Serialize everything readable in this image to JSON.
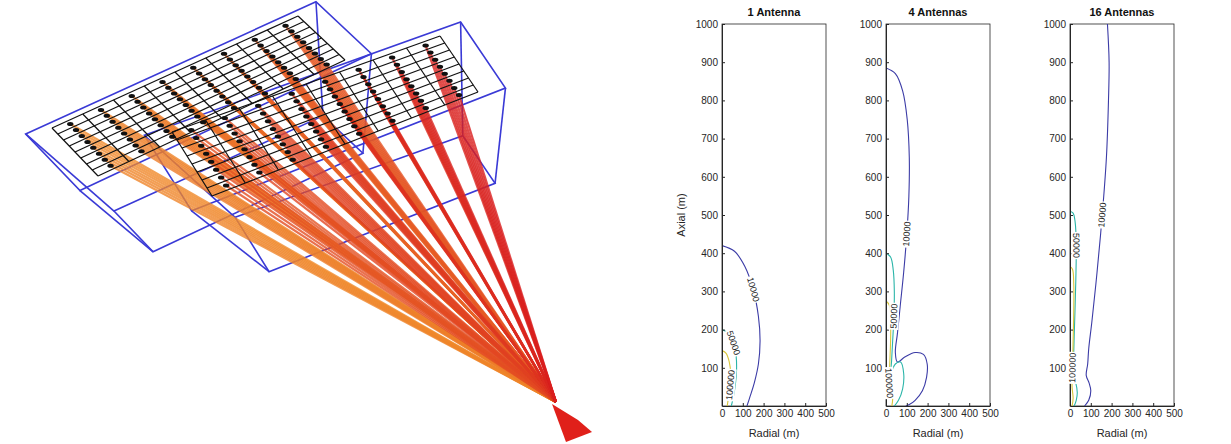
{
  "chart_data": [
    {
      "type": "contour",
      "title": "1 Antenna",
      "x_label": "Radial (m)",
      "y_label": "Axial (m)",
      "xlim": [
        0,
        500
      ],
      "ylim": [
        0,
        1000
      ],
      "xticks": [
        0,
        100,
        200,
        300,
        400,
        500
      ],
      "yticks": [
        100,
        200,
        300,
        400,
        500,
        600,
        700,
        800,
        900,
        1000
      ],
      "contours": [
        {
          "level": 10000,
          "color": "#3b3ba6",
          "x": [
            0,
            60,
            110,
            150,
            175,
            183,
            175,
            155,
            135,
            120
          ],
          "y": [
            420,
            405,
            365,
            305,
            235,
            170,
            110,
            60,
            25,
            0
          ]
        },
        {
          "level": 50000,
          "color": "#2bb5a9",
          "x": [
            0,
            30,
            55,
            68,
            70,
            65,
            55,
            45
          ],
          "y": [
            200,
            190,
            165,
            130,
            95,
            60,
            25,
            0
          ]
        },
        {
          "level": 100000,
          "color": "#d9c63a",
          "x": [
            0,
            20,
            35,
            42,
            40,
            32,
            25
          ],
          "y": [
            145,
            138,
            115,
            85,
            55,
            25,
            0
          ]
        }
      ]
    },
    {
      "type": "contour",
      "title": "4 Antennas",
      "x_label": "Radial (m)",
      "xlim": [
        0,
        500
      ],
      "ylim": [
        0,
        1000
      ],
      "xticks": [
        0,
        100,
        200,
        300,
        400,
        500
      ],
      "yticks": [
        100,
        200,
        300,
        400,
        500,
        600,
        700,
        800,
        900,
        1000
      ],
      "contours": [
        {
          "level": 10000,
          "color": "#3b3ba6",
          "x": [
            0,
            45,
            80,
            102,
            112,
            110,
            100,
            85,
            68,
            55,
            45,
            55,
            90,
            140,
            180,
            198,
            195,
            175,
            140,
            110,
            95
          ],
          "y": [
            885,
            870,
            825,
            750,
            650,
            550,
            450,
            350,
            260,
            190,
            140,
            115,
            128,
            140,
            135,
            110,
            75,
            40,
            15,
            3,
            0
          ]
        },
        {
          "level": 50000,
          "color": "#2bb5a9",
          "x": [
            0,
            22,
            35,
            40,
            38,
            32,
            27,
            25,
            45,
            70,
            85,
            80,
            60,
            40
          ],
          "y": [
            400,
            390,
            355,
            300,
            235,
            170,
            120,
            90,
            110,
            115,
            85,
            45,
            15,
            0
          ]
        },
        {
          "level": 100000,
          "color": "#d9c63a",
          "x": [
            0,
            15,
            22,
            22,
            18,
            15,
            25,
            32,
            28
          ],
          "y": [
            275,
            265,
            230,
            170,
            110,
            60,
            40,
            20,
            0
          ]
        }
      ]
    },
    {
      "type": "contour",
      "title": "16 Antennas",
      "x_label": "Radial (m)",
      "xlim": [
        0,
        500
      ],
      "ylim": [
        0,
        1000
      ],
      "xticks": [
        0,
        100,
        200,
        300,
        400,
        500
      ],
      "yticks": [
        100,
        200,
        300,
        400,
        500,
        600,
        700,
        800,
        900,
        1000
      ],
      "contours": [
        {
          "level": 10000,
          "color": "#3b3ba6",
          "x": [
            180,
            188,
            185,
            175,
            155,
            130,
            105,
            90,
            85,
            78,
            92,
            100,
            90,
            70
          ],
          "y": [
            1000,
            900,
            800,
            650,
            500,
            350,
            220,
            150,
            110,
            80,
            60,
            40,
            15,
            0
          ]
        },
        {
          "level": 50000,
          "color": "#2bb5a9",
          "x": [
            0,
            15,
            25,
            30,
            28,
            24,
            20,
            17,
            15,
            28,
            35,
            30,
            20
          ],
          "y": [
            510,
            505,
            480,
            420,
            330,
            250,
            180,
            120,
            80,
            60,
            35,
            15,
            0
          ]
        },
        {
          "level": 100000,
          "color": "#d9c63a",
          "x": [
            0,
            12,
            18,
            18,
            15,
            12,
            10,
            15,
            10
          ],
          "y": [
            365,
            358,
            320,
            250,
            170,
            100,
            50,
            20,
            0
          ]
        }
      ]
    }
  ]
}
